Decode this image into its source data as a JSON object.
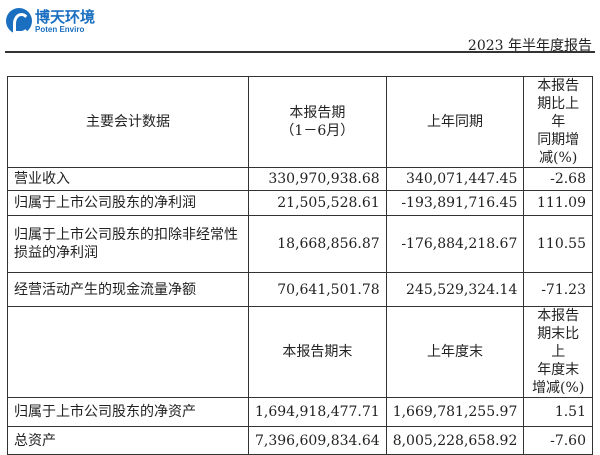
{
  "header": {
    "logo_cn": "博天环境",
    "logo_en": "Poten Enviro",
    "report_title": "2023 年半年度报告"
  },
  "table1": {
    "headers": [
      "主要会计数据",
      "本报告期\n（1－6月）",
      "上年同期",
      "本报告期比上年\n同期增减(%)"
    ],
    "rows": [
      [
        "营业收入",
        "330,970,938.68",
        "340,071,447.45",
        "-2.68"
      ],
      [
        "归属于上市公司股东的净利润",
        "21,505,528.61",
        "-193,891,716.45",
        "111.09"
      ],
      [
        "归属于上市公司股东的扣除非经常性损益的净利润",
        "18,668,856.87",
        "-176,884,218.67",
        "110.55"
      ],
      [
        "经营活动产生的现金流量净额",
        "70,641,501.78",
        "245,529,324.14",
        "-71.23"
      ]
    ]
  },
  "table2": {
    "headers": [
      "",
      "本报告期末",
      "上年度末",
      "本报告期末比上\n年度末增减(%)"
    ],
    "rows": [
      [
        "归属于上市公司股东的净资产",
        "1,694,918,477.71",
        "1,669,781,255.97",
        "1.51"
      ],
      [
        "总资产",
        "7,396,609,834.64",
        "8,005,228,658.92",
        "-7.60"
      ]
    ]
  }
}
